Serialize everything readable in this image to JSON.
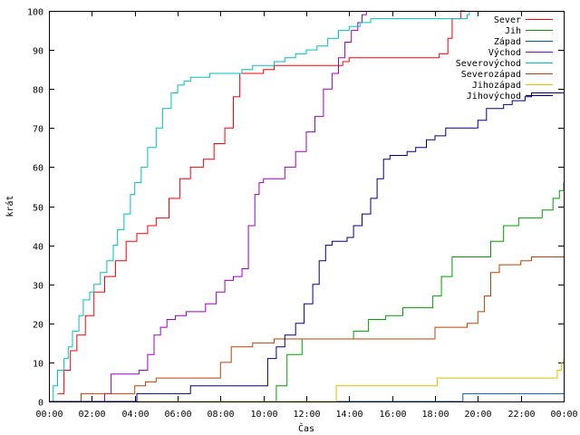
{
  "chart_data": {
    "type": "line",
    "xlabel": "Čas",
    "ylabel": "krát",
    "xlim": [
      0,
      24
    ],
    "ylim": [
      0,
      100
    ],
    "x_ticks": [
      {
        "v": 0,
        "label": "00:00"
      },
      {
        "v": 2,
        "label": "02:00"
      },
      {
        "v": 4,
        "label": "04:00"
      },
      {
        "v": 6,
        "label": "06:00"
      },
      {
        "v": 8,
        "label": "08:00"
      },
      {
        "v": 10,
        "label": "10:00"
      },
      {
        "v": 12,
        "label": "12:00"
      },
      {
        "v": 14,
        "label": "14:00"
      },
      {
        "v": 16,
        "label": "16:00"
      },
      {
        "v": 18,
        "label": "18:00"
      },
      {
        "v": 20,
        "label": "20:00"
      },
      {
        "v": 22,
        "label": "22:00"
      },
      {
        "v": 24,
        "label": "00:00"
      }
    ],
    "y_ticks": [
      0,
      10,
      20,
      30,
      40,
      50,
      60,
      70,
      80,
      90,
      100
    ],
    "grid": false,
    "legend_position": "top-right",
    "series": [
      {
        "name": "Sever",
        "color": "#ff0000",
        "x": [
          0.4,
          0.7,
          1.0,
          1.3,
          1.7,
          2.1,
          2.6,
          3.1,
          3.6,
          4.1,
          4.6,
          5.0,
          5.6,
          6.1,
          6.6,
          7.2,
          7.7,
          8.2,
          8.6,
          8.9,
          9.4,
          10.0,
          10.5,
          11.0,
          12.0,
          13.0,
          13.7,
          14.0,
          15.0,
          16.0,
          17.5,
          18.2,
          18.6,
          18.8,
          19.2,
          19.4
        ],
        "y": [
          2,
          8,
          13,
          17,
          22,
          28,
          32,
          36,
          41,
          43,
          45,
          47,
          52,
          57,
          60,
          62,
          66,
          70,
          78,
          84,
          84,
          85,
          86,
          86,
          86,
          86,
          87,
          88,
          88,
          88,
          88,
          89,
          93,
          98,
          100,
          100
        ]
      },
      {
        "name": "Jih",
        "color": "#00a000",
        "x": [
          0,
          10.0,
          10.6,
          11.1,
          11.8,
          12.5,
          13.4,
          14.2,
          14.9,
          15.7,
          16.5,
          17.3,
          17.9,
          18.3,
          18.8,
          19.3,
          20.0,
          20.6,
          21.2,
          21.9,
          22.5,
          23.0,
          23.5,
          23.8,
          24.0
        ],
        "y": [
          0,
          0,
          4,
          12,
          16,
          16,
          16,
          18,
          21,
          22,
          24,
          24,
          27,
          32,
          37,
          37,
          37,
          41,
          45,
          47,
          47,
          49,
          52,
          54,
          56
        ]
      },
      {
        "name": "Západ",
        "color": "#0060ad",
        "x": [
          0,
          19.2,
          19.3,
          24.0
        ],
        "y": [
          0,
          0,
          2,
          2
        ]
      },
      {
        "name": "Východ",
        "color": "#a000c0",
        "x": [
          0,
          2.6,
          2.9,
          3.5,
          4.2,
          4.6,
          4.9,
          5.2,
          5.5,
          5.9,
          6.4,
          6.8,
          7.3,
          7.8,
          8.2,
          8.6,
          9.0,
          9.3,
          9.6,
          9.8,
          10.0,
          10.4,
          11.0,
          11.5,
          12.0,
          12.4,
          12.8,
          13.2,
          13.5,
          13.8,
          14.1,
          14.4,
          14.6,
          14.8
        ],
        "y": [
          0,
          2,
          7,
          7,
          8,
          12,
          17,
          19,
          21,
          22,
          23,
          23,
          25,
          28,
          31,
          32,
          34,
          45,
          53,
          56,
          57,
          57,
          60,
          64,
          69,
          73,
          80,
          84,
          88,
          92,
          95,
          97,
          99,
          100
        ]
      },
      {
        "name": "Severovýchod",
        "color": "#00c0c0",
        "x": [
          0,
          0.2,
          0.4,
          0.7,
          0.9,
          1.1,
          1.4,
          1.6,
          1.9,
          2.1,
          2.4,
          2.7,
          3.0,
          3.2,
          3.5,
          3.8,
          4.0,
          4.3,
          4.6,
          5.0,
          5.3,
          5.7,
          6.0,
          6.3,
          6.6,
          6.8,
          7.0,
          7.5,
          8.0,
          8.5,
          9.0,
          9.5,
          10.0,
          10.5,
          11.0,
          11.5,
          12.0,
          12.5,
          13.0,
          13.5,
          14.0,
          14.5,
          15.0,
          16.0,
          17.0,
          18.0,
          19.0,
          19.2,
          19.5,
          19.6
        ],
        "y": [
          0,
          4,
          8,
          11,
          14,
          18,
          22,
          26,
          28,
          30,
          33,
          36,
          40,
          44,
          48,
          53,
          56,
          60,
          65,
          70,
          75,
          79,
          81,
          82,
          83,
          83,
          83,
          84,
          84,
          84,
          85,
          86,
          86,
          87,
          88,
          89,
          90,
          91,
          93,
          95,
          96,
          97,
          98,
          98,
          98,
          98,
          98,
          98,
          99,
          100
        ]
      },
      {
        "name": "Severozápad",
        "color": "#c04000",
        "x": [
          0,
          1.5,
          3.0,
          4.0,
          4.5,
          5.0,
          6.0,
          7.0,
          7.5,
          8.0,
          8.5,
          9.0,
          9.5,
          10.0,
          10.5,
          11.0,
          12.0,
          13.0,
          14.0,
          15.0,
          16.0,
          17.0,
          18.0,
          19.0,
          19.5,
          20.0,
          20.3,
          20.6,
          21.0,
          21.3,
          21.6,
          22.0,
          22.5,
          23.0,
          24.0
        ],
        "y": [
          0,
          2,
          2,
          4,
          5,
          6,
          6,
          6,
          6,
          10,
          14,
          14,
          15,
          15,
          16,
          16,
          16,
          16,
          16,
          16,
          16,
          16,
          19,
          19,
          20,
          23,
          27,
          33,
          35,
          35,
          35,
          36,
          37,
          37,
          37
        ]
      },
      {
        "name": "Jihozápad",
        "color": "#e0c000",
        "x": [
          0,
          13.0,
          13.4,
          16.0,
          18.0,
          18.1,
          22.0,
          23.4,
          23.7,
          23.9,
          24.0
        ],
        "y": [
          0,
          0,
          4,
          4,
          4,
          6,
          6,
          6,
          8,
          10,
          11
        ]
      },
      {
        "name": "Jihovýchod",
        "color": "#000080",
        "x": [
          0,
          4.0,
          4.1,
          6.5,
          6.6,
          9.8,
          10.2,
          10.6,
          11.0,
          11.5,
          11.9,
          12.3,
          12.6,
          12.9,
          13.2,
          13.5,
          13.9,
          14.2,
          14.6,
          15.0,
          15.3,
          15.6,
          15.9,
          16.3,
          16.7,
          17.1,
          17.6,
          18.0,
          18.5,
          19.0,
          19.5,
          20.0,
          20.4,
          20.8,
          21.2,
          21.6,
          22.2,
          22.5,
          23.0,
          24.0
        ],
        "y": [
          0,
          0,
          2,
          2,
          4,
          4,
          11,
          14,
          17,
          20,
          25,
          30,
          36,
          40,
          41,
          41,
          42,
          45,
          48,
          52,
          57,
          62,
          63,
          63,
          64,
          65,
          67,
          68,
          70,
          70,
          70,
          72,
          75,
          75,
          76,
          77,
          78,
          79,
          79,
          79
        ]
      }
    ]
  }
}
